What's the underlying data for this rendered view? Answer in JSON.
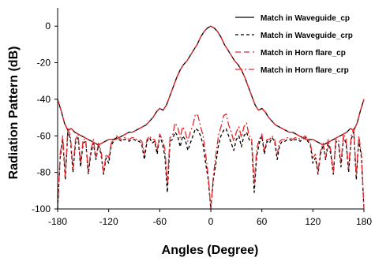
{
  "chart_data": {
    "type": "line",
    "title": "",
    "xlabel": "Angles (Degree)",
    "ylabel": "Radiation Pattern (dB)",
    "xlim": [
      -180,
      180
    ],
    "ylim": [
      -100,
      10
    ],
    "xticks": [
      -180,
      -120,
      -60,
      0,
      60,
      120,
      180
    ],
    "yticks": [
      0,
      -20,
      -40,
      -60,
      -80,
      -100
    ],
    "legend_position": "top-right",
    "grid": false,
    "series": [
      {
        "name": "Match in Waveguide_cp",
        "color": "#000000",
        "dash": "solid",
        "x": [
          -180,
          -176,
          -172,
          -168,
          -164,
          -160,
          -156,
          -152,
          -148,
          -144,
          -140,
          -136,
          -132,
          -128,
          -124,
          -120,
          -116,
          -112,
          -108,
          -104,
          -100,
          -96,
          -92,
          -88,
          -84,
          -80,
          -76,
          -72,
          -68,
          -64,
          -60,
          -56,
          -52,
          -48,
          -44,
          -40,
          -36,
          -32,
          -28,
          -24,
          -20,
          -16,
          -12,
          -8,
          -4,
          0,
          4,
          8,
          12,
          16,
          20,
          24,
          28,
          32,
          36,
          40,
          44,
          48,
          52,
          56,
          60,
          64,
          68,
          72,
          76,
          80,
          84,
          88,
          92,
          96,
          100,
          104,
          108,
          112,
          116,
          120,
          124,
          128,
          132,
          136,
          140,
          144,
          148,
          152,
          156,
          160,
          164,
          168,
          172,
          176,
          180
        ],
        "y": [
          -40,
          -46,
          -53,
          -57,
          -56,
          -58,
          -59,
          -60,
          -61,
          -62,
          -63,
          -64,
          -65,
          -64,
          -63,
          -62,
          -62,
          -62,
          -61,
          -60,
          -59,
          -58,
          -58,
          -57,
          -56,
          -55,
          -54,
          -52,
          -50,
          -47,
          -45,
          -46,
          -43,
          -38,
          -33,
          -28,
          -24,
          -21,
          -19,
          -16,
          -13,
          -10,
          -6,
          -3,
          -1,
          0,
          -1,
          -3,
          -6,
          -10,
          -13,
          -16,
          -19,
          -21,
          -24,
          -28,
          -33,
          -38,
          -43,
          -46,
          -45,
          -47,
          -50,
          -52,
          -54,
          -55,
          -56,
          -57,
          -58,
          -58,
          -59,
          -60,
          -61,
          -62,
          -62,
          -62,
          -63,
          -64,
          -65,
          -64,
          -63,
          -62,
          -61,
          -60,
          -59,
          -58,
          -56,
          -57,
          -53,
          -46,
          -40
        ]
      },
      {
        "name": "Match in Waveguide_crp",
        "color": "#000000",
        "dash": "dashed",
        "x": [
          -180,
          -177,
          -174,
          -171,
          -168,
          -165,
          -162,
          -159,
          -156,
          -153,
          -150,
          -147,
          -144,
          -141,
          -138,
          -135,
          -132,
          -129,
          -126,
          -123,
          -120,
          -117,
          -114,
          -111,
          -108,
          -105,
          -102,
          -99,
          -96,
          -93,
          -90,
          -87,
          -84,
          -81,
          -78,
          -75,
          -72,
          -69,
          -66,
          -63,
          -60,
          -57,
          -54,
          -51,
          -48,
          -45,
          -42,
          -39,
          -36,
          -33,
          -30,
          -27,
          -24,
          -21,
          -18,
          -15,
          -12,
          -9,
          -6,
          -3,
          0,
          3,
          6,
          9,
          12,
          15,
          18,
          21,
          24,
          27,
          30,
          33,
          36,
          39,
          42,
          45,
          48,
          51,
          54,
          57,
          60,
          63,
          66,
          69,
          72,
          75,
          78,
          81,
          84,
          87,
          90,
          93,
          96,
          99,
          102,
          105,
          108,
          111,
          114,
          117,
          120,
          123,
          126,
          129,
          132,
          135,
          138,
          141,
          144,
          147,
          150,
          153,
          156,
          159,
          162,
          165,
          168,
          171,
          174,
          177,
          180
        ],
        "y": [
          -100,
          -72,
          -62,
          -84,
          -58,
          -62,
          -80,
          -64,
          -61,
          -77,
          -64,
          -63,
          -81,
          -70,
          -64,
          -73,
          -65,
          -70,
          -81,
          -72,
          -75,
          -65,
          -63,
          -61,
          -62,
          -63,
          -62,
          -62,
          -63,
          -62,
          -62,
          -63,
          -63,
          -65,
          -73,
          -63,
          -61,
          -64,
          -63,
          -70,
          -60,
          -64,
          -71,
          -91,
          -63,
          -62,
          -58,
          -60,
          -66,
          -60,
          -62,
          -68,
          -64,
          -60,
          -56,
          -57,
          -60,
          -65,
          -75,
          -84,
          -100,
          -84,
          -75,
          -65,
          -60,
          -57,
          -56,
          -60,
          -64,
          -68,
          -62,
          -60,
          -66,
          -60,
          -58,
          -62,
          -63,
          -91,
          -71,
          -64,
          -60,
          -70,
          -63,
          -64,
          -61,
          -63,
          -73,
          -65,
          -63,
          -63,
          -62,
          -62,
          -63,
          -62,
          -62,
          -63,
          -62,
          -61,
          -63,
          -65,
          -75,
          -72,
          -81,
          -70,
          -65,
          -73,
          -64,
          -70,
          -81,
          -63,
          -64,
          -77,
          -61,
          -64,
          -80,
          -62,
          -58,
          -84,
          -62,
          -72,
          -100
        ]
      },
      {
        "name": "Match in Horn flare_cp",
        "color": "#e8282d",
        "dash": "dash",
        "x": [
          -180,
          -176,
          -172,
          -168,
          -164,
          -160,
          -156,
          -152,
          -148,
          -144,
          -140,
          -136,
          -132,
          -128,
          -124,
          -120,
          -116,
          -112,
          -108,
          -104,
          -100,
          -96,
          -92,
          -88,
          -84,
          -80,
          -76,
          -72,
          -68,
          -64,
          -60,
          -56,
          -52,
          -48,
          -44,
          -40,
          -36,
          -32,
          -28,
          -24,
          -20,
          -16,
          -12,
          -8,
          -4,
          0,
          4,
          8,
          12,
          16,
          20,
          24,
          28,
          32,
          36,
          40,
          44,
          48,
          52,
          56,
          60,
          64,
          68,
          72,
          76,
          80,
          84,
          88,
          92,
          96,
          100,
          104,
          108,
          112,
          116,
          120,
          124,
          128,
          132,
          136,
          140,
          144,
          148,
          152,
          156,
          160,
          164,
          168,
          172,
          176,
          180
        ],
        "y": [
          -40,
          -46,
          -53,
          -57,
          -56,
          -58,
          -59,
          -60,
          -61,
          -62,
          -63,
          -64,
          -65,
          -64,
          -63,
          -62,
          -62,
          -62,
          -61,
          -60,
          -59,
          -58,
          -58,
          -57,
          -56,
          -55,
          -54,
          -52,
          -50,
          -47,
          -45,
          -46,
          -43,
          -38,
          -33,
          -28,
          -24,
          -21,
          -19,
          -16,
          -13,
          -10,
          -6,
          -3,
          -1,
          0,
          -1,
          -3,
          -6,
          -10,
          -13,
          -16,
          -19,
          -21,
          -24,
          -28,
          -33,
          -38,
          -43,
          -46,
          -45,
          -47,
          -50,
          -52,
          -54,
          -55,
          -56,
          -57,
          -58,
          -58,
          -59,
          -60,
          -61,
          -62,
          -62,
          -62,
          -63,
          -64,
          -65,
          -64,
          -63,
          -62,
          -61,
          -60,
          -59,
          -58,
          -56,
          -57,
          -53,
          -46,
          -40
        ]
      },
      {
        "name": "Match in Horn flare_crp",
        "color": "#e8282d",
        "dash": "dashdot",
        "x": [
          -180,
          -177,
          -174,
          -171,
          -168,
          -165,
          -162,
          -159,
          -156,
          -153,
          -150,
          -147,
          -144,
          -141,
          -138,
          -135,
          -132,
          -129,
          -126,
          -123,
          -120,
          -117,
          -114,
          -111,
          -108,
          -105,
          -102,
          -99,
          -96,
          -93,
          -90,
          -87,
          -84,
          -81,
          -78,
          -75,
          -72,
          -69,
          -66,
          -63,
          -60,
          -57,
          -54,
          -51,
          -48,
          -45,
          -42,
          -39,
          -36,
          -33,
          -30,
          -27,
          -24,
          -21,
          -18,
          -15,
          -12,
          -9,
          -6,
          -3,
          0,
          3,
          6,
          9,
          12,
          15,
          18,
          21,
          24,
          27,
          30,
          33,
          36,
          39,
          42,
          45,
          48,
          51,
          54,
          57,
          60,
          63,
          66,
          69,
          72,
          75,
          78,
          81,
          84,
          87,
          90,
          93,
          96,
          99,
          102,
          105,
          108,
          111,
          114,
          117,
          120,
          123,
          126,
          129,
          132,
          135,
          138,
          141,
          144,
          147,
          150,
          153,
          156,
          159,
          162,
          165,
          168,
          171,
          174,
          177,
          180
        ],
        "y": [
          -100,
          -70,
          -60,
          -82,
          -56,
          -60,
          -78,
          -62,
          -59,
          -75,
          -62,
          -62,
          -80,
          -68,
          -62,
          -72,
          -64,
          -68,
          -80,
          -70,
          -72,
          -64,
          -62,
          -60,
          -61,
          -62,
          -61,
          -61,
          -62,
          -61,
          -61,
          -62,
          -62,
          -63,
          -70,
          -62,
          -60,
          -62,
          -62,
          -68,
          -59,
          -62,
          -67,
          -86,
          -61,
          -60,
          -53,
          -55,
          -61,
          -55,
          -58,
          -63,
          -58,
          -54,
          -48,
          -49,
          -55,
          -60,
          -70,
          -82,
          -100,
          -82,
          -70,
          -60,
          -55,
          -49,
          -48,
          -54,
          -58,
          -63,
          -58,
          -55,
          -61,
          -55,
          -53,
          -60,
          -61,
          -86,
          -67,
          -62,
          -59,
          -68,
          -62,
          -62,
          -60,
          -62,
          -70,
          -63,
          -62,
          -62,
          -61,
          -61,
          -62,
          -61,
          -61,
          -62,
          -61,
          -60,
          -62,
          -64,
          -72,
          -70,
          -80,
          -68,
          -64,
          -72,
          -62,
          -68,
          -80,
          -62,
          -62,
          -75,
          -59,
          -62,
          -78,
          -60,
          -56,
          -82,
          -60,
          -70,
          -100
        ]
      }
    ]
  }
}
